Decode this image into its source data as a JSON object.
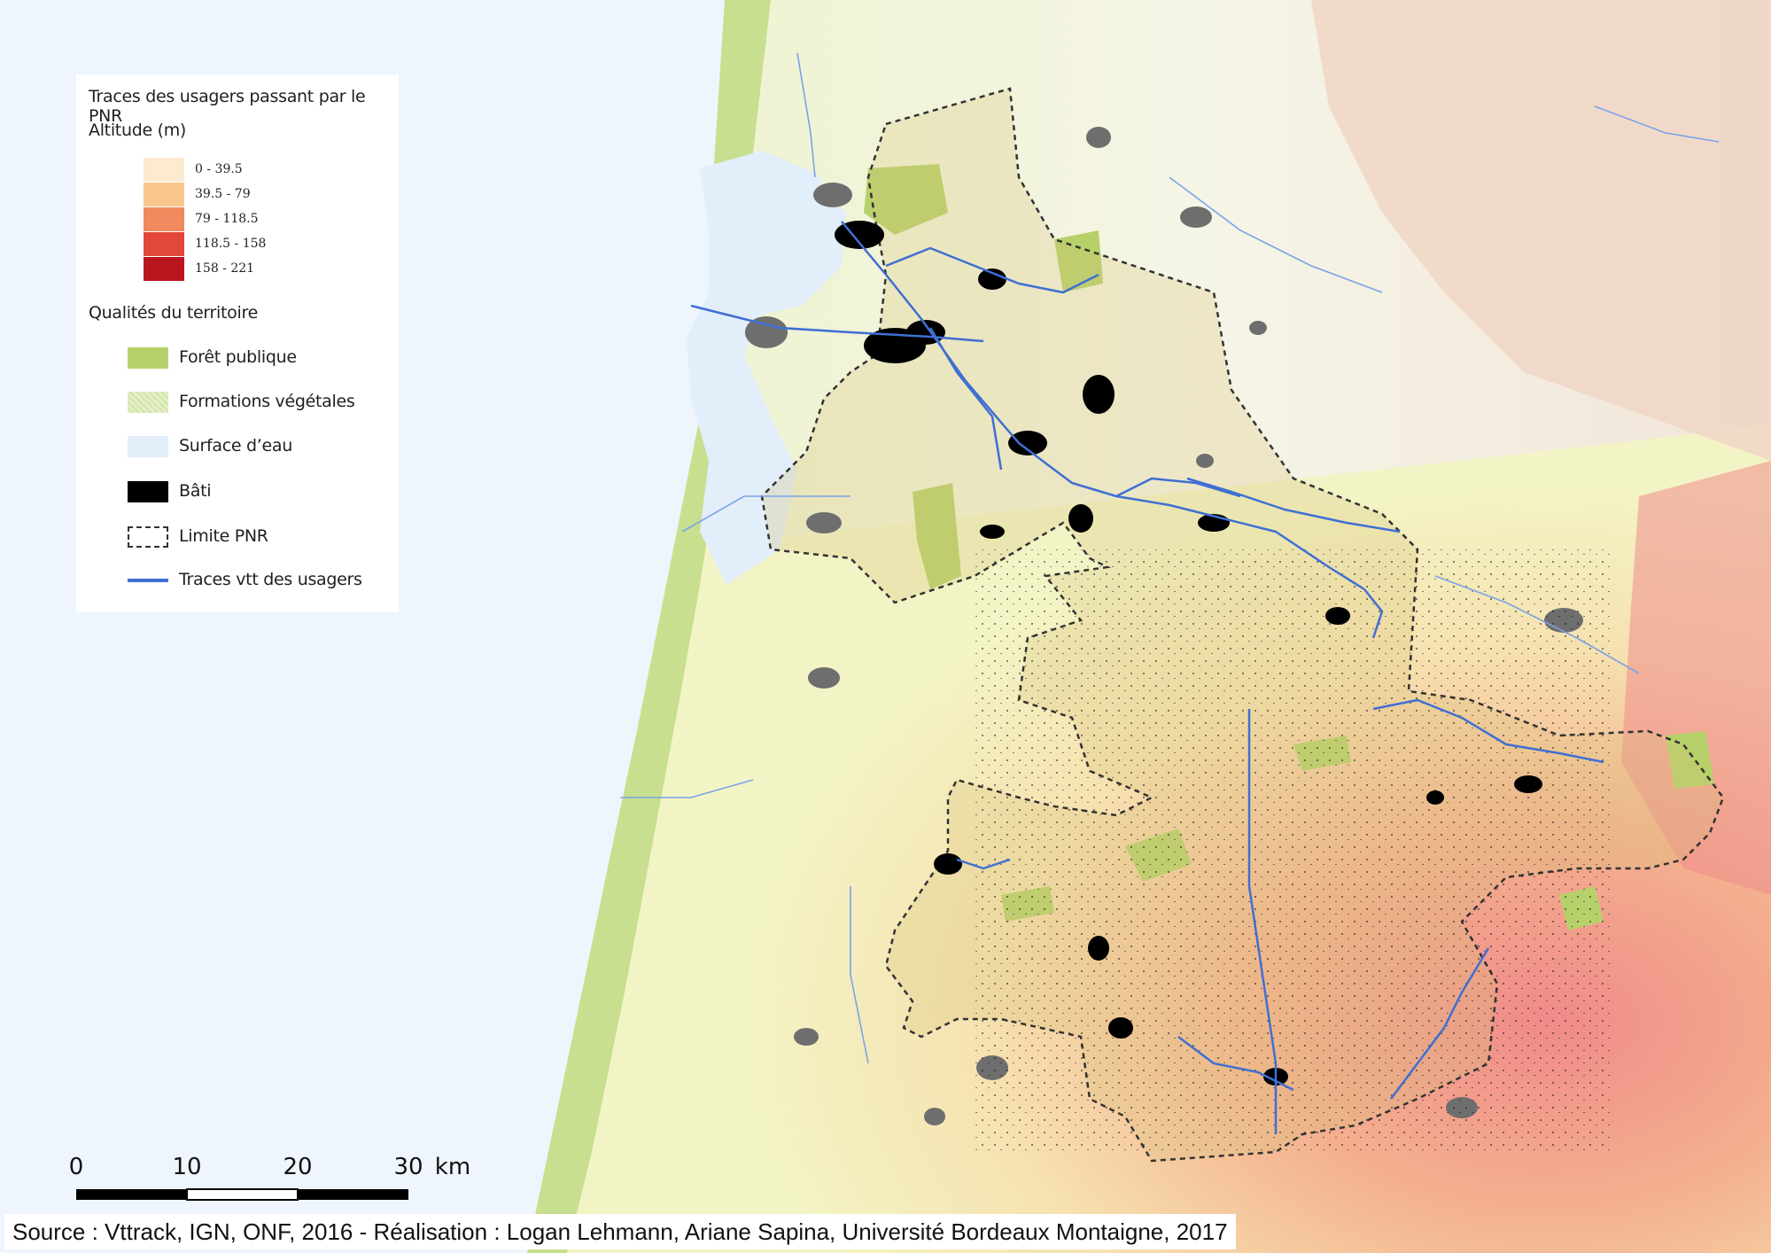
{
  "legend": {
    "title": "Traces des usagers passant par le PNR",
    "altitude_heading": "Altitude (m)",
    "altitude_classes": [
      {
        "label": "0 - 39.5",
        "color": "#fdebcf"
      },
      {
        "label": "39.5 - 79",
        "color": "#f8c68a"
      },
      {
        "label": "79 - 118.5",
        "color": "#f08a5f"
      },
      {
        "label": "118.5 - 158",
        "color": "#e2473a"
      },
      {
        "label": "158 - 221",
        "color": "#b9161f"
      }
    ],
    "quality_heading": "Qualités du territoire",
    "quality_items": [
      {
        "label": "Forêt publique",
        "icon": "green-fill-swatch",
        "color": "#b6d16a"
      },
      {
        "label": "Formations végétales",
        "icon": "light-green-hatched-swatch",
        "color": "#e4efc9"
      },
      {
        "label": "Surface d’eau",
        "icon": "light-blue-fill-swatch",
        "color": "#e2eef9"
      },
      {
        "label": "Bâti",
        "icon": "black-fill-swatch",
        "color": "#000000"
      },
      {
        "label": "Limite PNR",
        "icon": "dashed-outline-swatch",
        "color": "#333333"
      },
      {
        "label": "Traces vtt des usagers",
        "icon": "blue-line-swatch",
        "color": "#3f6fd3"
      }
    ]
  },
  "scalebar": {
    "ticks": [
      "0",
      "10",
      "20",
      "30"
    ],
    "unit": "km"
  },
  "source": {
    "text": "Source : Vttrack, IGN, ONF, 2016 - Réalisation : Logan Lehmann, Ariane Sapina, Université Bordeaux Montaigne, 2017"
  },
  "colors": {
    "ocean": "#eef5fc",
    "coastal_dunes": "#c7df8f",
    "lowland": "#f4f4c4",
    "upland": "#f2a77f",
    "highland": "#ef7373",
    "pnr_tint": "#d8c27a",
    "built": "#000000",
    "built_outside": "#6e6e6e",
    "traces": "#3f6fd3",
    "traces_outside": "#7ba3e8"
  }
}
